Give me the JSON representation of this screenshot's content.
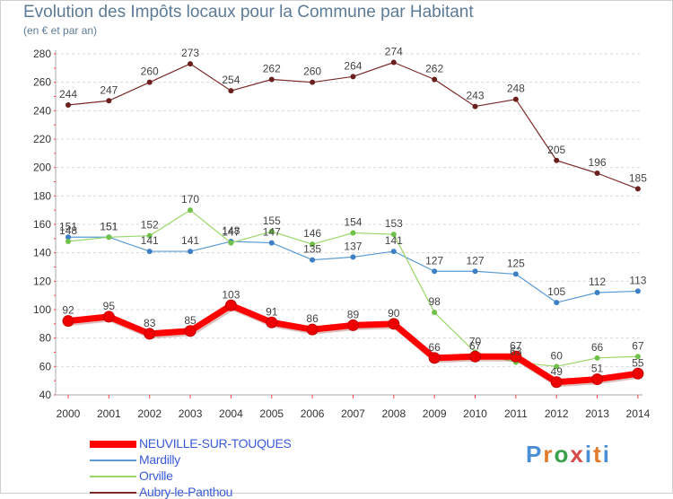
{
  "title": "Evolution des Impôts locaux pour la Commune par Habitant",
  "subtitle": "(en € et par an)",
  "logo": {
    "text": "Proxiti",
    "letters": [
      "P",
      "r",
      "o",
      "x",
      "i",
      "t",
      "i"
    ],
    "colors": [
      "#4a8fd6",
      "#e07b2c",
      "#3aa14a",
      "#d64a4a",
      "#4a8fd6",
      "#e07b2c",
      "#4a8fd6"
    ]
  },
  "chart_data": {
    "type": "line",
    "title": "Evolution des Impôts locaux pour la Commune par Habitant",
    "subtitle": "(en € et par an)",
    "xlabel": "",
    "ylabel": "",
    "categories": [
      "2000",
      "2001",
      "2002",
      "2003",
      "2004",
      "2005",
      "2006",
      "2007",
      "2008",
      "2009",
      "2010",
      "2011",
      "2012",
      "2013",
      "2014"
    ],
    "ylim": [
      40,
      280
    ],
    "yticks": [
      40,
      60,
      80,
      100,
      120,
      140,
      160,
      180,
      200,
      220,
      240,
      260,
      280
    ],
    "grid": "horizontal dashed",
    "legend_position": "bottom-left",
    "series": [
      {
        "name": "Aubry-le-Panthou",
        "color": "#7a2a2a",
        "marker": "#6b1f1f",
        "width": 1.2,
        "values": [
          244,
          247,
          260,
          273,
          254,
          262,
          260,
          264,
          274,
          262,
          243,
          248,
          205,
          196,
          185
        ],
        "labels": [
          "244",
          "247",
          "260",
          "273",
          "254",
          "262",
          "260",
          "264",
          "274",
          "262",
          "243",
          "248",
          "205",
          "196",
          "185"
        ]
      },
      {
        "name": "Mardilly",
        "color": "#5b9bd5",
        "marker": "#3d7fc4",
        "width": 1.2,
        "values": [
          151,
          151,
          141,
          141,
          148,
          147,
          135,
          137,
          141,
          127,
          127,
          125,
          105,
          112,
          113
        ],
        "labels": [
          "151",
          "151",
          "141",
          "141",
          "148",
          "147",
          "135",
          "137",
          "141",
          "127",
          "127",
          "125",
          "105",
          "112",
          "113"
        ]
      },
      {
        "name": "Orville",
        "color": "#9bd66a",
        "marker": "#6fc14a",
        "width": 1.2,
        "values": [
          148,
          151,
          152,
          170,
          147,
          155,
          146,
          154,
          153,
          98,
          70,
          63,
          60,
          66,
          67
        ],
        "labels": [
          "148",
          "151",
          "152",
          "170",
          "147",
          "155",
          "146",
          "154",
          "153",
          "98",
          "70",
          "63",
          "60",
          "66",
          "67"
        ]
      },
      {
        "name": "NEUVILLE-SUR-TOUQUES",
        "color": "#ff0000",
        "marker": "#ee0000",
        "width": 7,
        "values": [
          92,
          95,
          83,
          85,
          103,
          91,
          86,
          89,
          90,
          66,
          67,
          67,
          49,
          51,
          55
        ],
        "labels": [
          "92",
          "95",
          "83",
          "85",
          "103",
          "91",
          "86",
          "89",
          "90",
          "66",
          "67",
          "67",
          "49",
          "51",
          "55"
        ]
      }
    ],
    "legend_order": [
      "NEUVILLE-SUR-TOUQUES",
      "Mardilly",
      "Orville",
      "Aubry-le-Panthou"
    ]
  }
}
